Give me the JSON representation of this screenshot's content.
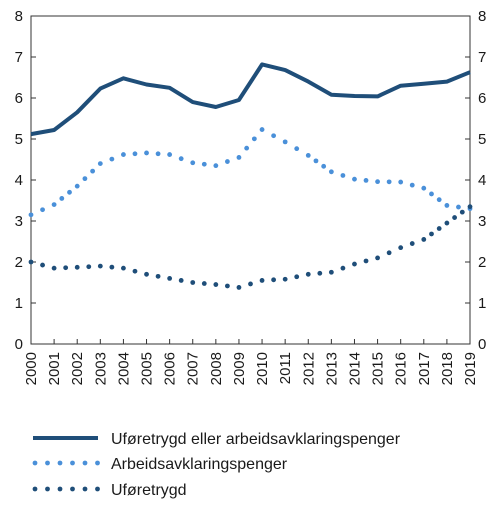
{
  "chart_data": {
    "type": "line",
    "title": "",
    "xlabel": "",
    "ylabel": "",
    "ylim": [
      0,
      8
    ],
    "yticks": [
      "0",
      "1",
      "2",
      "3",
      "4",
      "5",
      "6",
      "7",
      "8"
    ],
    "categories": [
      "2000",
      "2001",
      "2002",
      "2003",
      "2004",
      "2005",
      "2006",
      "2007",
      "2008",
      "2009",
      "2010",
      "2011",
      "2012",
      "2013",
      "2014",
      "2015",
      "2016",
      "2017",
      "2018",
      "2019"
    ],
    "grid": false,
    "legend_position": "bottom",
    "series": [
      {
        "name": "Uføretrygd eller arbeidsavklaringspenger",
        "style": "solid",
        "color": "#1f4e79",
        "values": [
          5.12,
          5.22,
          5.65,
          6.23,
          6.48,
          6.33,
          6.25,
          5.9,
          5.78,
          5.95,
          6.82,
          6.68,
          6.4,
          6.08,
          6.05,
          6.04,
          6.3,
          6.35,
          6.4,
          6.63
        ]
      },
      {
        "name": "Arbeidsavklaringspenger",
        "style": "dotted",
        "color": "#4a90d9",
        "values": [
          3.15,
          3.4,
          3.85,
          4.4,
          4.62,
          4.66,
          4.62,
          4.42,
          4.35,
          4.55,
          5.23,
          4.93,
          4.6,
          4.2,
          4.02,
          3.96,
          3.95,
          3.8,
          3.38,
          3.3
        ]
      },
      {
        "name": "Uføretrygd",
        "style": "dotted",
        "color": "#1f4e79",
        "values": [
          2.0,
          1.85,
          1.87,
          1.9,
          1.85,
          1.7,
          1.6,
          1.5,
          1.45,
          1.38,
          1.55,
          1.58,
          1.7,
          1.75,
          1.95,
          2.1,
          2.35,
          2.55,
          2.95,
          3.35
        ]
      }
    ]
  }
}
